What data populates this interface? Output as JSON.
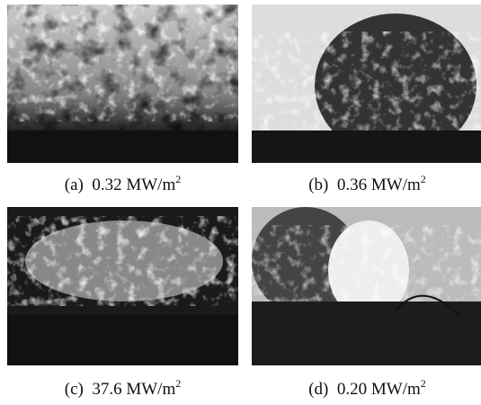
{
  "figure": {
    "panels": [
      {
        "label": "(a)",
        "value": "0.32",
        "unit": "MW/m",
        "unit_sup": "2"
      },
      {
        "label": "(b)",
        "value": "0.36",
        "unit": "MW/m",
        "unit_sup": "2"
      },
      {
        "label": "(c)",
        "value": "37.6",
        "unit": "MW/m",
        "unit_sup": "2"
      },
      {
        "label": "(d)",
        "value": "0.20",
        "unit": "MW/m",
        "unit_sup": "2"
      }
    ]
  }
}
